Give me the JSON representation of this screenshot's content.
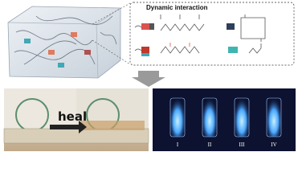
{
  "inset": {
    "title": "Dynamic interaction"
  },
  "healing_photo": {
    "label": "heal"
  },
  "fluorescence_photo": {
    "vial_labels": [
      "I",
      "II",
      "III",
      "IV"
    ]
  }
}
